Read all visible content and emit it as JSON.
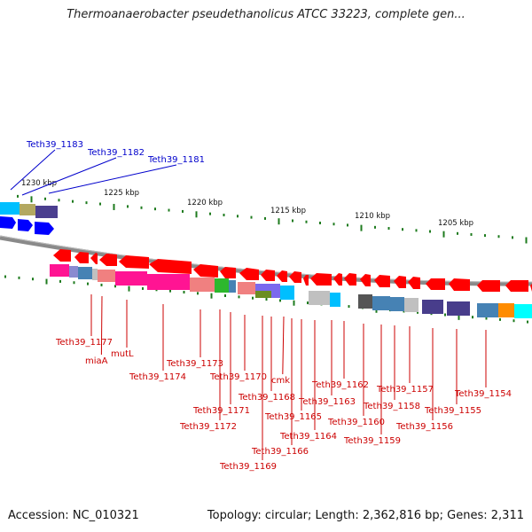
{
  "title": "Thermoanaerobacter pseudethanolicus ATCC 33223, complete gen...",
  "accession_label": "Accession: NC_010321",
  "topology_label": "Topology: circular; Length: 2,362,816 bp; Genes: 2,311",
  "colors": {
    "backbone": "#8a8a8a",
    "tick": "#1e7b1e",
    "red_arrow": "#ff0000",
    "blue_arrow": "#0000ff",
    "label_red": "#cc0000",
    "label_blue": "#0000cc"
  },
  "scale_labels": [
    "1230 kbp",
    "1225 kbp",
    "1220 kbp",
    "1215 kbp",
    "1210 kbp",
    "1205 kbp"
  ],
  "top_labels": [
    "Teth39_1183",
    "Teth39_1182",
    "Teth39_1181"
  ],
  "bottom_labels": [
    "Teth39_1177",
    "miaA",
    "mutL",
    "Teth39_1174",
    "Teth39_1173",
    "Teth39_1172",
    "Teth39_1171",
    "Teth39_1170",
    "Teth39_1169",
    "Teth39_1168",
    "cmk",
    "Teth39_1166",
    "Teth39_1165",
    "Teth39_1164",
    "Teth39_1163",
    "Teth39_1162",
    "Teth39_1160",
    "Teth39_1159",
    "Teth39_1158",
    "Teth39_1157",
    "Teth39_1156",
    "Teth39_1155",
    "Teth39_1154"
  ]
}
